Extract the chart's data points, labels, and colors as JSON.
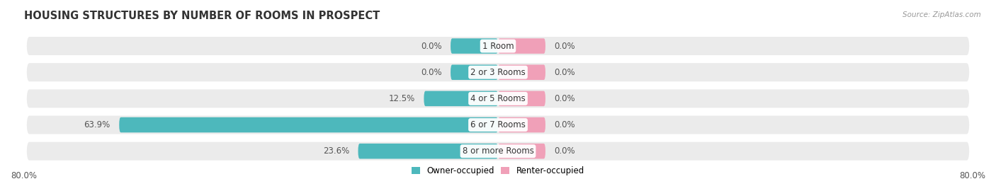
{
  "title": "HOUSING STRUCTURES BY NUMBER OF ROOMS IN PROSPECT",
  "source": "Source: ZipAtlas.com",
  "categories": [
    "1 Room",
    "2 or 3 Rooms",
    "4 or 5 Rooms",
    "6 or 7 Rooms",
    "8 or more Rooms"
  ],
  "owner_values": [
    0.0,
    0.0,
    12.5,
    63.9,
    23.6
  ],
  "renter_values": [
    0.0,
    0.0,
    0.0,
    0.0,
    0.0
  ],
  "owner_color": "#4db8bc",
  "renter_color": "#f0a0b8",
  "row_bg_color": "#ebebeb",
  "x_min": -80.0,
  "x_max": 80.0,
  "min_bar_width": 8.0,
  "label_fontsize": 8.5,
  "title_fontsize": 10.5,
  "bar_height": 0.58,
  "legend_owner": "Owner-occupied",
  "legend_renter": "Renter-occupied"
}
